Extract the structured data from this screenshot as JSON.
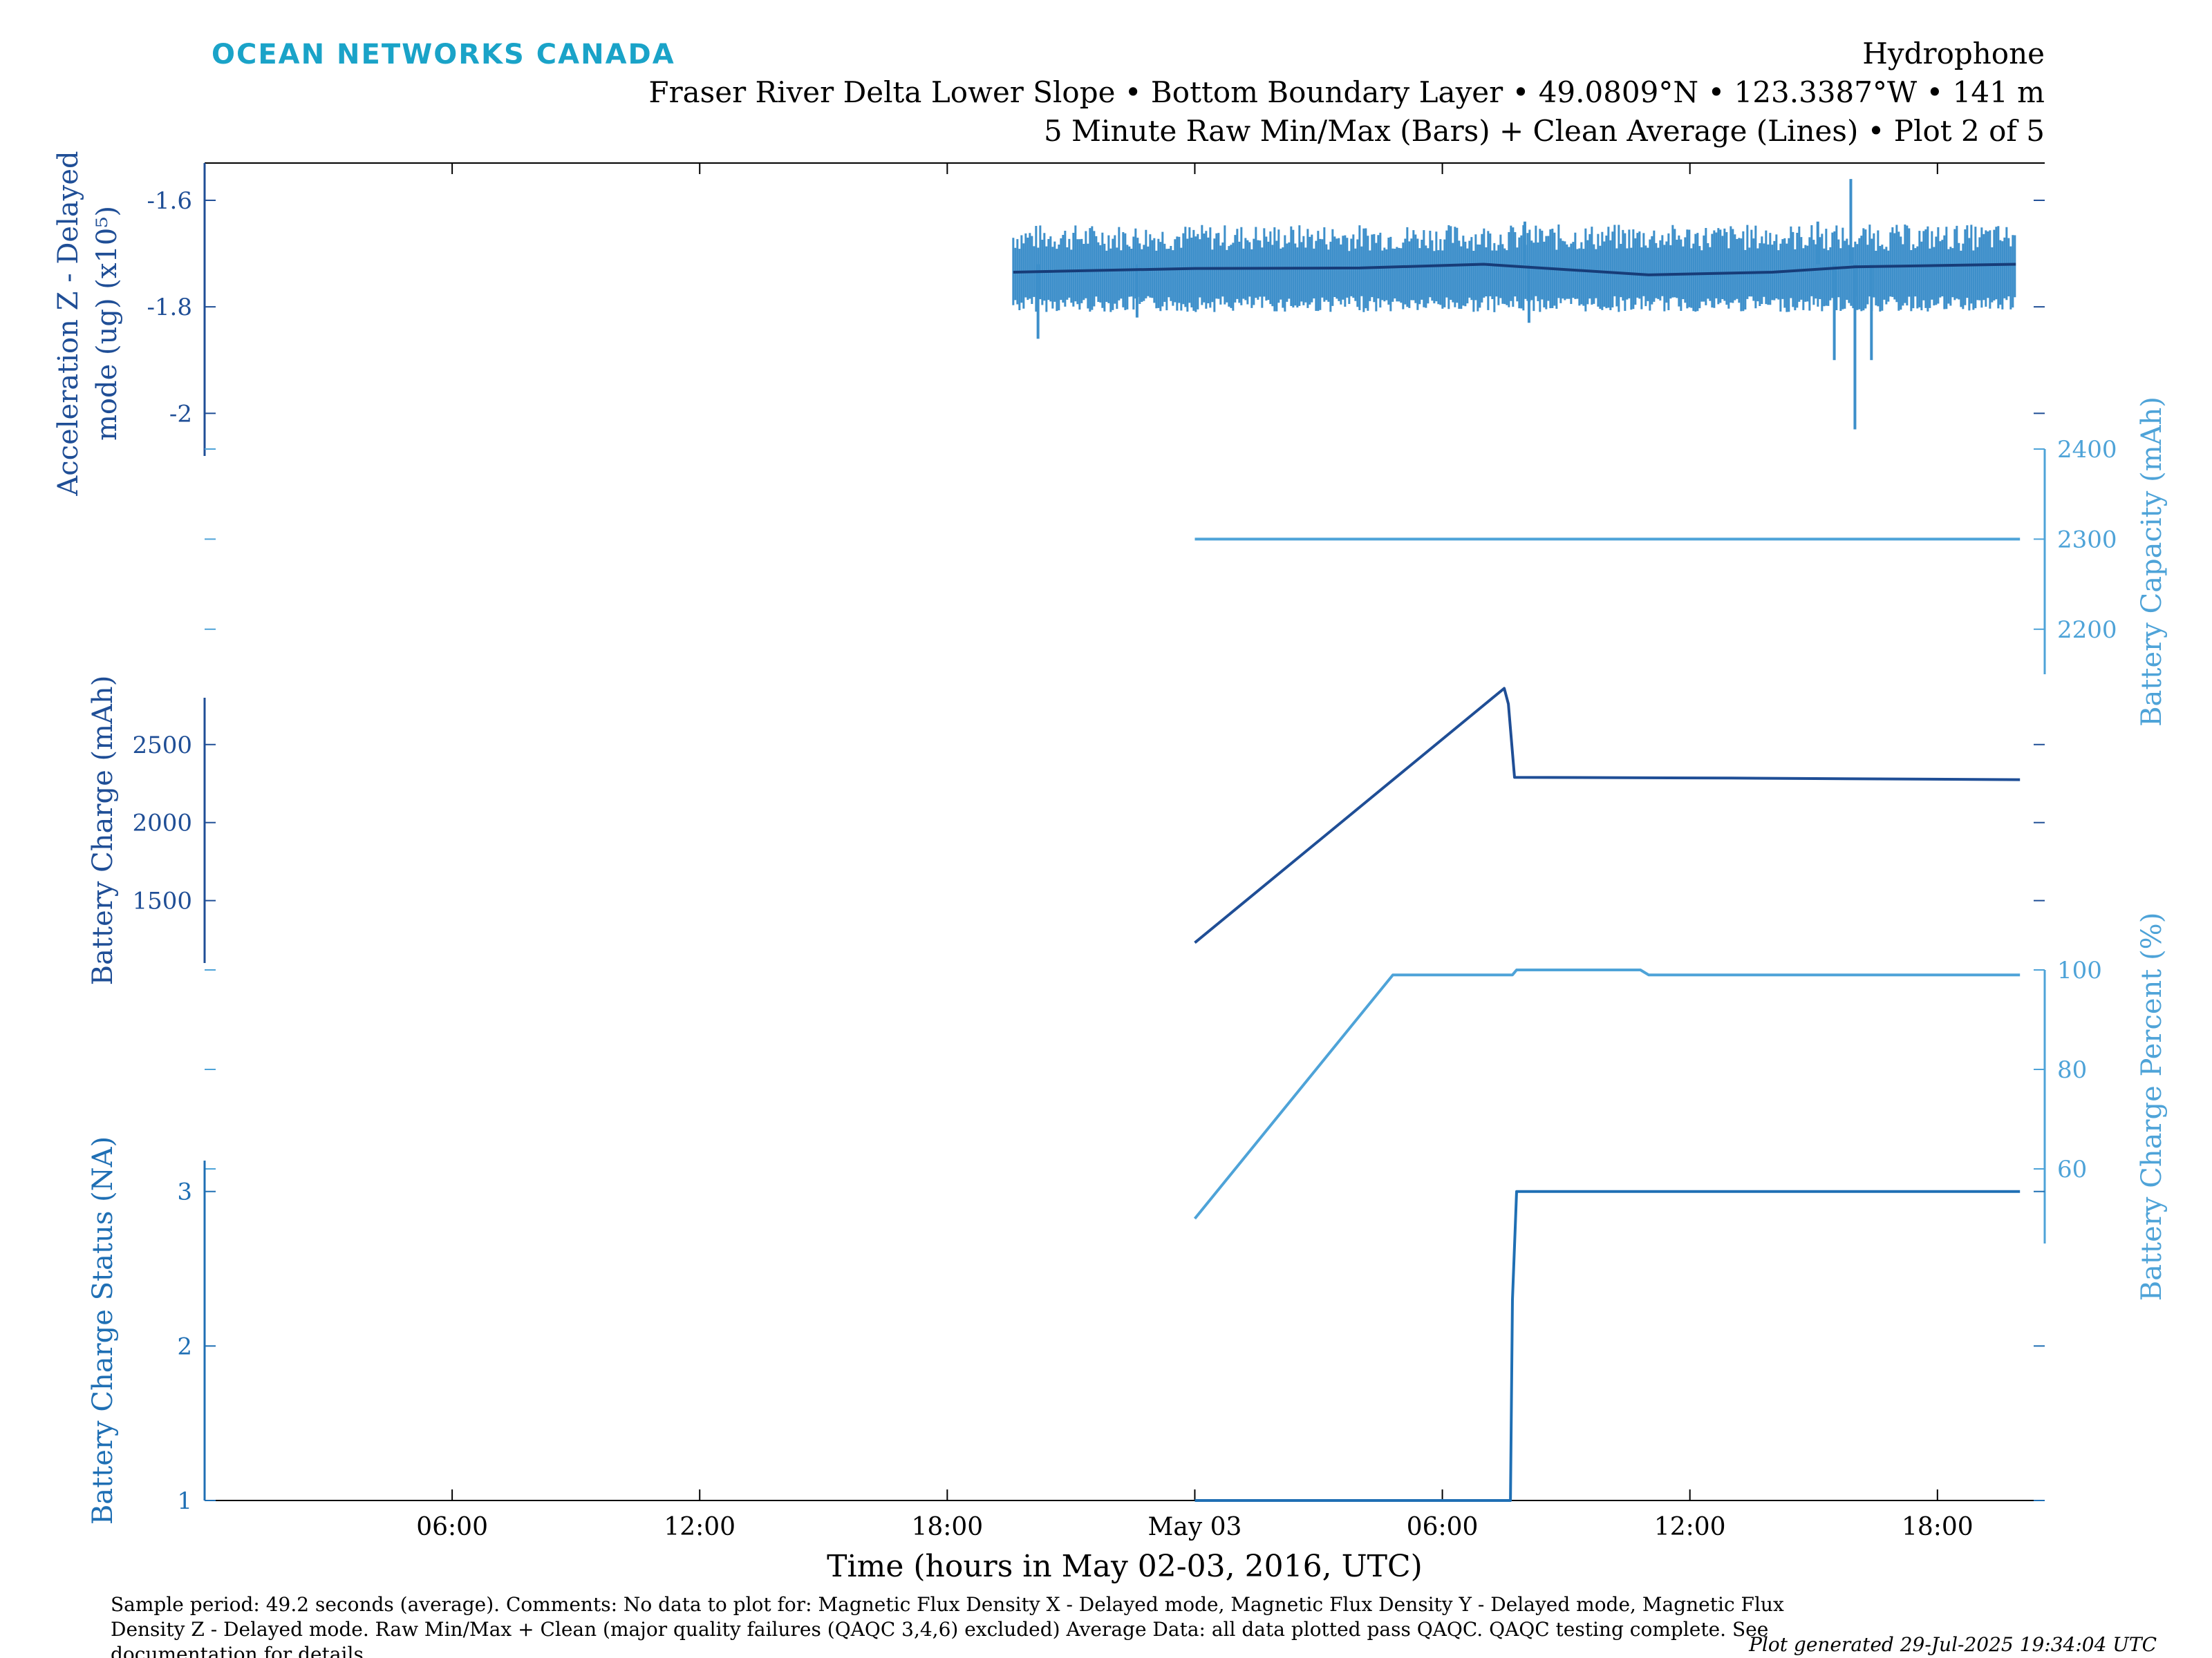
{
  "header": {
    "brand": "OCEAN NETWORKS CANADA",
    "device": "Hydrophone",
    "location": "Fraser River Delta Lower Slope • Bottom Boundary Layer • 49.0809°N • 123.3387°W • 141 m",
    "plot_desc": "5 Minute Raw Min/Max (Bars) + Clean Average (Lines) • Plot 2 of 5"
  },
  "footer": {
    "notes": [
      "Sample period: 49.2 seconds (average). Comments: No data to plot for: Magnetic Flux Density X - Delayed mode, Magnetic Flux Density Y - Delayed mode, Magnetic Flux",
      "Density Z - Delayed mode. Raw Min/Max + Clean (major quality failures (QAQC 3,4,6) excluded) Average Data: all data plotted pass QAQC. QAQC testing complete. See",
      "documentation for details."
    ],
    "generated": "Plot generated 29-Jul-2025 19:34:04 UTC"
  },
  "colors": {
    "dark_blue": "#1f4e96",
    "mid_blue": "#1f6fb4",
    "light_blue": "#4ea3d8",
    "bar_blue": "#3d8fca",
    "avg_line": "#173c78",
    "brand": "#1aa3c8"
  },
  "chart_data": {
    "type": "line",
    "xlabel": "Time (hours in May 02-03, 2016, UTC)",
    "x_ticks": [
      "06:00",
      "12:00",
      "18:00",
      "May 03",
      "06:00",
      "12:00",
      "18:00"
    ],
    "x_tick_hours": [
      6,
      12,
      18,
      24,
      30,
      36,
      42
    ],
    "xlim_hours": [
      0,
      44.6
    ],
    "panels": [
      {
        "id": "accel",
        "side": "left",
        "ylabel_lines": [
          "Acceleration Z - Delayed",
          "mode (ug) (x10⁵)"
        ],
        "ylim": [
          -2.08,
          -1.53
        ],
        "ticks": [
          -1.6,
          -1.8,
          -2.0
        ],
        "tick_labels": [
          "-1.6",
          "-1.8",
          "-2"
        ],
        "series": {
          "type": "minmax_bars_with_average",
          "x_start_hours": 19.6,
          "x_end_hours": 43.9,
          "avg": [
            [
              19.6,
              -1.735
            ],
            [
              24.0,
              -1.728
            ],
            [
              28.0,
              -1.727
            ],
            [
              31.0,
              -1.72
            ],
            [
              33.0,
              -1.73
            ],
            [
              35.0,
              -1.74
            ],
            [
              38.0,
              -1.735
            ],
            [
              40.0,
              -1.725
            ],
            [
              43.9,
              -1.72
            ]
          ],
          "min_typical": -1.78,
          "max_typical": -1.67,
          "spikes": [
            [
              20.2,
              -1.86
            ],
            [
              22.6,
              -1.82
            ],
            [
              32.0,
              -1.64
            ],
            [
              32.1,
              -1.83
            ],
            [
              39.1,
              -1.64
            ],
            [
              39.5,
              -1.9
            ],
            [
              39.9,
              -1.56
            ],
            [
              40.0,
              -2.03
            ],
            [
              40.4,
              -1.9
            ]
          ]
        }
      },
      {
        "id": "capacity",
        "side": "right",
        "ylabel": "Battery Capacity (mAh)",
        "ylim": [
          2150,
          2400
        ],
        "ticks": [
          2400,
          2300,
          2200
        ],
        "tick_labels": [
          "2400",
          "2300",
          "2200"
        ],
        "series": {
          "type": "line",
          "points": [
            [
              24.0,
              2300
            ],
            [
              44.0,
              2300
            ]
          ]
        }
      },
      {
        "id": "charge",
        "side": "left",
        "ylabel": "Battery Charge (mAh)",
        "ylim": [
          1100,
          2800
        ],
        "ticks": [
          2500,
          2000,
          1500
        ],
        "tick_labels": [
          "2500",
          "2000",
          "1500"
        ],
        "series": {
          "type": "line",
          "points": [
            [
              24.0,
              1230
            ],
            [
              31.5,
              2860
            ],
            [
              31.6,
              2760
            ],
            [
              31.75,
              2290
            ],
            [
              37.0,
              2285
            ],
            [
              44.0,
              2275
            ]
          ]
        }
      },
      {
        "id": "percent",
        "side": "right",
        "ylabel": "Battery Charge Percent (%)",
        "ylim": [
          45,
          100
        ],
        "ticks": [
          100,
          80,
          60
        ],
        "tick_labels": [
          "100",
          "80",
          "60"
        ],
        "series": {
          "type": "line",
          "points": [
            [
              24.0,
              50
            ],
            [
              28.8,
              99
            ],
            [
              31.7,
              99
            ],
            [
              31.8,
              100
            ],
            [
              34.8,
              100
            ],
            [
              35.0,
              99
            ],
            [
              44.0,
              99
            ]
          ]
        }
      },
      {
        "id": "status",
        "side": "left",
        "ylabel": "Battery Charge Status (NA)",
        "ylim": [
          1,
          3.2
        ],
        "ticks": [
          3,
          2,
          1
        ],
        "tick_labels": [
          "3",
          "2",
          "1"
        ],
        "series": {
          "type": "line",
          "points": [
            [
              24.0,
              1
            ],
            [
              31.65,
              1
            ],
            [
              31.7,
              2.3
            ],
            [
              31.8,
              3
            ],
            [
              44.0,
              3
            ]
          ]
        }
      }
    ]
  }
}
